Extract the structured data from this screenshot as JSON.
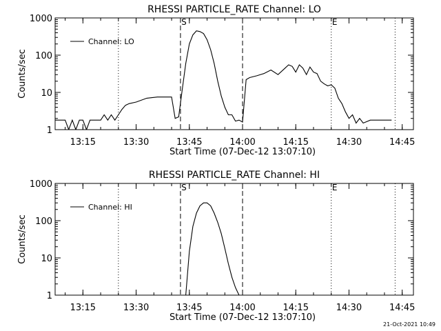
{
  "chart_data": [
    {
      "type": "line",
      "title": "RHESSI PARTICLE_RATE Channel: LO",
      "xlabel": "Start Time (07-Dec-12 13:07:10)",
      "ylabel": "Counts/sec",
      "yscale": "log",
      "ylim": [
        1,
        1000
      ],
      "xlim_minutes_after_start": [
        0,
        101
      ],
      "x_ticks": [
        "13:15",
        "13:30",
        "13:45",
        "14:00",
        "14:15",
        "14:30",
        "14:45"
      ],
      "y_ticks": [
        "1",
        "10",
        "100",
        "1000"
      ],
      "legend": "top-left",
      "markers": {
        "start_label": "S",
        "end_label": "E"
      },
      "series": [
        {
          "name": "Channel: LO",
          "x": [
            "13:07:10",
            "13:10",
            "13:11",
            "13:12",
            "13:13",
            "13:14",
            "13:15",
            "13:16",
            "13:17",
            "13:20",
            "13:21",
            "13:22",
            "13:23",
            "13:24",
            "13:25",
            "13:26",
            "13:27",
            "13:28",
            "13:30",
            "13:33",
            "13:36",
            "13:38",
            "13:40",
            "13:41",
            "13:42",
            "13:43",
            "13:44",
            "13:45",
            "13:46",
            "13:47",
            "13:48",
            "13:49",
            "13:50",
            "13:51",
            "13:52",
            "13:53",
            "13:54",
            "13:55",
            "13:56",
            "13:57",
            "13:58",
            "13:59",
            "14:00",
            "14:01",
            "14:02",
            "14:04",
            "14:06",
            "14:08",
            "14:10",
            "14:12",
            "14:13",
            "14:14",
            "14:15",
            "14:16",
            "14:17",
            "14:18",
            "14:19",
            "14:20",
            "14:21",
            "14:22",
            "14:23",
            "14:24",
            "14:25",
            "14:26",
            "14:27",
            "14:28",
            "14:29",
            "14:30",
            "14:31",
            "14:32",
            "14:33",
            "14:34",
            "14:36",
            "14:38",
            "14:40",
            "14:42"
          ],
          "y": [
            1.8,
            1.8,
            1.0,
            1.8,
            1.0,
            1.8,
            1.8,
            1.0,
            1.8,
            1.8,
            2.5,
            1.8,
            2.5,
            1.8,
            2.5,
            3.5,
            4.5,
            5,
            5.5,
            7,
            7.5,
            7.5,
            7.5,
            2.0,
            2.2,
            12,
            60,
            200,
            350,
            450,
            430,
            380,
            260,
            140,
            60,
            20,
            8,
            4,
            2.5,
            2.5,
            1.7,
            1.8,
            1.6,
            22,
            25,
            28,
            32,
            40,
            30,
            45,
            55,
            50,
            35,
            55,
            45,
            30,
            48,
            35,
            32,
            20,
            17,
            15,
            16,
            13,
            7,
            5,
            3,
            2,
            2.5,
            1.5,
            2,
            1.5,
            1.8,
            1.8,
            1.8,
            1.8
          ]
        }
      ]
    },
    {
      "type": "line",
      "title": "RHESSI PARTICLE_RATE Channel: HI",
      "xlabel": "Start Time (07-Dec-12 13:07:10)",
      "ylabel": "Counts/sec",
      "yscale": "log",
      "ylim": [
        1,
        1000
      ],
      "xlim_minutes_after_start": [
        0,
        101
      ],
      "x_ticks": [
        "13:15",
        "13:30",
        "13:45",
        "14:00",
        "14:15",
        "14:30",
        "14:45"
      ],
      "y_ticks": [
        "1",
        "10",
        "100",
        "1000"
      ],
      "legend": "top-left",
      "markers": {
        "start_label": "S",
        "end_label": "E"
      },
      "series": [
        {
          "name": "Channel: HI",
          "x": [
            "13:44",
            "13:45",
            "13:46",
            "13:47",
            "13:48",
            "13:49",
            "13:50",
            "13:51",
            "13:52",
            "13:53",
            "13:54",
            "13:55",
            "13:56",
            "13:57",
            "13:58",
            "13:59"
          ],
          "y": [
            1,
            15,
            70,
            160,
            250,
            300,
            300,
            250,
            160,
            90,
            45,
            18,
            7,
            3,
            1.6,
            1
          ]
        }
      ]
    }
  ],
  "footer": {
    "timestamp": "21-Oct-2021 10:49"
  }
}
